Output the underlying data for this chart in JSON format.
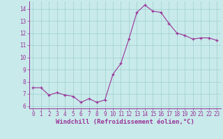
{
  "x": [
    0,
    1,
    2,
    3,
    4,
    5,
    6,
    7,
    8,
    9,
    10,
    11,
    12,
    13,
    14,
    15,
    16,
    17,
    18,
    19,
    20,
    21,
    22,
    23
  ],
  "y": [
    7.5,
    7.5,
    6.9,
    7.1,
    6.9,
    6.8,
    6.3,
    6.6,
    6.3,
    6.5,
    8.6,
    9.5,
    11.5,
    13.7,
    14.3,
    13.8,
    13.7,
    12.8,
    12.0,
    11.8,
    11.5,
    11.6,
    11.6,
    11.4
  ],
  "line_color": "#993399",
  "marker_color": "#993399",
  "bg_color": "#c8eaea",
  "grid_color": "#a0cccc",
  "axis_color": "#993399",
  "xlabel": "Windchill (Refroidissement éolien,°C)",
  "ylim": [
    5.8,
    14.6
  ],
  "xlim": [
    -0.5,
    23.5
  ],
  "yticks": [
    6,
    7,
    8,
    9,
    10,
    11,
    12,
    13,
    14
  ],
  "xticks": [
    0,
    1,
    2,
    3,
    4,
    5,
    6,
    7,
    8,
    9,
    10,
    11,
    12,
    13,
    14,
    15,
    16,
    17,
    18,
    19,
    20,
    21,
    22,
    23
  ],
  "label_fontsize": 6.5,
  "tick_fontsize": 5.5
}
